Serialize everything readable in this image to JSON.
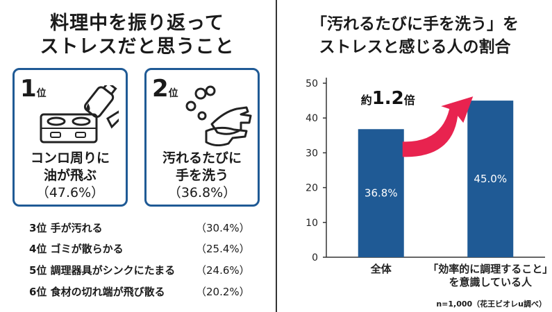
{
  "left": {
    "title_line1": "料理中を振り返って",
    "title_line2": "ストレスだと思うこと",
    "cards": [
      {
        "rank_num": "1",
        "rank_unit": "位",
        "line1": "コンロ周りに",
        "line2": "油が飛ぶ",
        "pct": "（47.6%）",
        "icon": "stove-oil-bottle-icon"
      },
      {
        "rank_num": "2",
        "rank_unit": "位",
        "line1": "汚れるたびに",
        "line2": "手を洗う",
        "pct": "（36.8%）",
        "icon": "washing-hands-icon"
      }
    ],
    "ranks": [
      {
        "label": "3位 手が汚れる",
        "pct": "（30.4%）"
      },
      {
        "label": "4位 ゴミが散らかる",
        "pct": "（25.4%）"
      },
      {
        "label": "5位 調理器具がシンクにたまる",
        "pct": "（24.6%）"
      },
      {
        "label": "6位 食材の切れ端が飛び散る",
        "pct": "（20.2%）"
      }
    ]
  },
  "right": {
    "title_line1": "「汚れるたびに手を洗う」を",
    "title_line2": "ストレスと感じる人の割合",
    "footnote": "n=1,000（花王ビオレu調べ）"
  },
  "chart_data": {
    "type": "bar",
    "categories": [
      "全体",
      "「効率的に調理すること」\nを意識している人"
    ],
    "category_lines": [
      [
        "全体"
      ],
      [
        "「効率的に調理すること」",
        "を意識している人"
      ]
    ],
    "values": [
      36.8,
      45.0
    ],
    "data_labels": [
      "36.8%",
      "45.0%"
    ],
    "ylim": [
      0,
      50
    ],
    "yticks": [
      0,
      10,
      20,
      30,
      40,
      50
    ],
    "grid": false,
    "annotation": {
      "prefix": "約",
      "number": "1.2",
      "suffix": "倍"
    },
    "colors": {
      "bar": "#1f5a95",
      "arrow": "#e8234f",
      "axis": "#333333"
    }
  }
}
